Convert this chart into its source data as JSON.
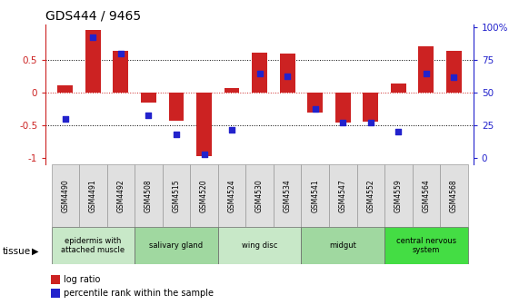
{
  "title": "GDS444 / 9465",
  "samples": [
    "GSM4490",
    "GSM4491",
    "GSM4492",
    "GSM4508",
    "GSM4515",
    "GSM4520",
    "GSM4524",
    "GSM4530",
    "GSM4534",
    "GSM4541",
    "GSM4547",
    "GSM4552",
    "GSM4559",
    "GSM4564",
    "GSM4568"
  ],
  "log_ratio": [
    0.12,
    0.97,
    0.65,
    -0.15,
    -0.42,
    -0.97,
    0.08,
    0.62,
    0.6,
    -0.3,
    -0.45,
    -0.44,
    0.15,
    0.72,
    0.65
  ],
  "percentile_raw": [
    0.3,
    0.93,
    0.8,
    0.33,
    0.18,
    0.03,
    0.22,
    0.65,
    0.63,
    0.38,
    0.27,
    0.27,
    0.2,
    0.65,
    0.62
  ],
  "bar_color": "#cc2222",
  "dot_color": "#2222cc",
  "ylim": [
    -1.1,
    1.05
  ],
  "yticks_left": [
    -1,
    -0.5,
    0,
    0.5
  ],
  "ytick_labels_left": [
    "-1",
    "-0.5",
    "0",
    "0.5"
  ],
  "right_ticks_pos": [
    -1.0,
    -0.5,
    0.0,
    0.5,
    1.0
  ],
  "ytick_labels_right": [
    "0",
    "25",
    "50",
    "75",
    "100%"
  ],
  "hlines_dotted": [
    0.5,
    -0.5
  ],
  "hline_red": 0.0,
  "tissues": [
    {
      "label": "epidermis with\nattached muscle",
      "start": 0,
      "end": 3,
      "color": "#c8e8c8"
    },
    {
      "label": "salivary gland",
      "start": 3,
      "end": 6,
      "color": "#a0d8a0"
    },
    {
      "label": "wing disc",
      "start": 6,
      "end": 9,
      "color": "#c8e8c8"
    },
    {
      "label": "midgut",
      "start": 9,
      "end": 12,
      "color": "#a0d8a0"
    },
    {
      "label": "central nervous\nsystem",
      "start": 12,
      "end": 15,
      "color": "#44dd44"
    }
  ],
  "legend_red_label": "log ratio",
  "legend_blue_label": "percentile rank within the sample",
  "tissue_label": "tissue",
  "background_color": "#ffffff",
  "bar_width": 0.55,
  "dot_size": 18
}
